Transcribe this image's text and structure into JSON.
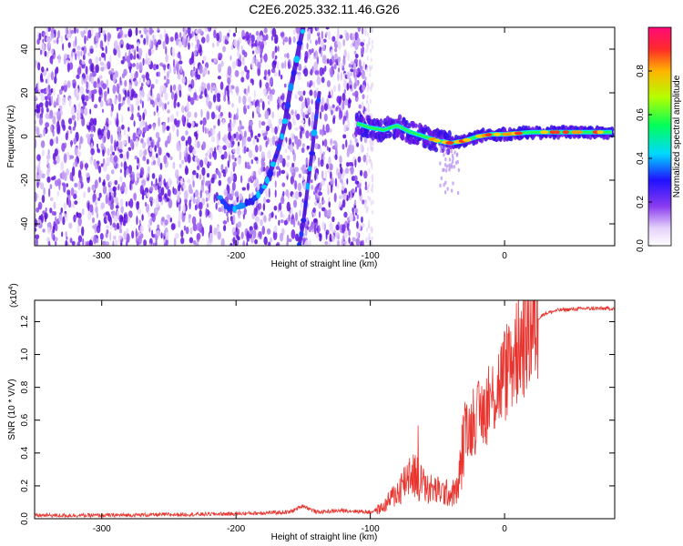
{
  "title": "C2E6.2025.332.11.46.G26",
  "spectrogram": {
    "chart_data": {
      "type": "heatmap",
      "xlabel": "Height of straight line (km)",
      "ylabel": "Frequency (Hz)",
      "xlim": [
        -350,
        82
      ],
      "ylim": [
        -50,
        50
      ],
      "xticks": [
        "-300",
        "-200",
        "-100",
        "0"
      ],
      "yticks": [
        "-40",
        "-20",
        "0",
        "20",
        "40"
      ],
      "colorbar": {
        "label": "Normalized spectral amplitude",
        "range": [
          0,
          1
        ],
        "ticks": [
          "0.0",
          "0.2",
          "0.4",
          "0.6",
          "0.8"
        ]
      },
      "noise_region_x": [
        -350,
        -103
      ],
      "features": [
        {
          "name": "curved trace",
          "x": [
            -212,
            -205,
            -195,
            -185,
            -178,
            -172,
            -168,
            -164,
            -160,
            -155,
            -150
          ],
          "y": [
            -28,
            -33,
            -32,
            -28,
            -22,
            -12,
            -5,
            5,
            20,
            35,
            50
          ]
        },
        {
          "name": "steep trace",
          "x": [
            -153,
            -150,
            -146,
            -142,
            -138
          ],
          "y": [
            -50,
            -40,
            -20,
            0,
            20
          ]
        },
        {
          "name": "signal band",
          "x": [
            -110,
            -100,
            -90,
            -80,
            -70,
            -60,
            -50,
            -40,
            -30,
            -20,
            -10,
            0,
            20,
            40,
            60,
            80
          ],
          "y": [
            6,
            4,
            3,
            5,
            2,
            0,
            -2,
            -3,
            -2,
            0,
            1,
            1,
            2,
            2,
            2,
            2
          ]
        }
      ]
    }
  },
  "snr": {
    "chart_data": {
      "type": "line",
      "xlabel": "Height of straight line (km)",
      "ylabel": "SNR (10 * V/V)",
      "multiplier": "(x10",
      "multiplier_exp": "4",
      "multiplier_close": ")",
      "xlim": [
        -350,
        82
      ],
      "ylim": [
        0,
        1.33
      ],
      "xticks": [
        "-300",
        "-200",
        "-100",
        "0"
      ],
      "yticks": [
        "0.0",
        "0.2",
        "0.4",
        "0.6",
        "0.8",
        "1.0",
        "1.2"
      ],
      "x": [
        -350,
        -300,
        -200,
        -160,
        -150,
        -140,
        -120,
        -100,
        -90,
        -85,
        -80,
        -75,
        -70,
        -65,
        -60,
        -55,
        -50,
        -45,
        -40,
        -35,
        -30,
        -25,
        -20,
        -15,
        -10,
        -5,
        0,
        5,
        10,
        15,
        20,
        25,
        30,
        40,
        60,
        82
      ],
      "y": [
        0.02,
        0.02,
        0.03,
        0.04,
        0.08,
        0.04,
        0.05,
        0.04,
        0.07,
        0.12,
        0.16,
        0.22,
        0.3,
        0.25,
        0.2,
        0.18,
        0.17,
        0.16,
        0.15,
        0.17,
        0.5,
        0.56,
        0.62,
        0.66,
        0.72,
        0.8,
        0.88,
        0.96,
        1.04,
        1.12,
        1.18,
        1.22,
        1.25,
        1.27,
        1.28,
        1.28
      ],
      "color": "#e8352f"
    }
  }
}
